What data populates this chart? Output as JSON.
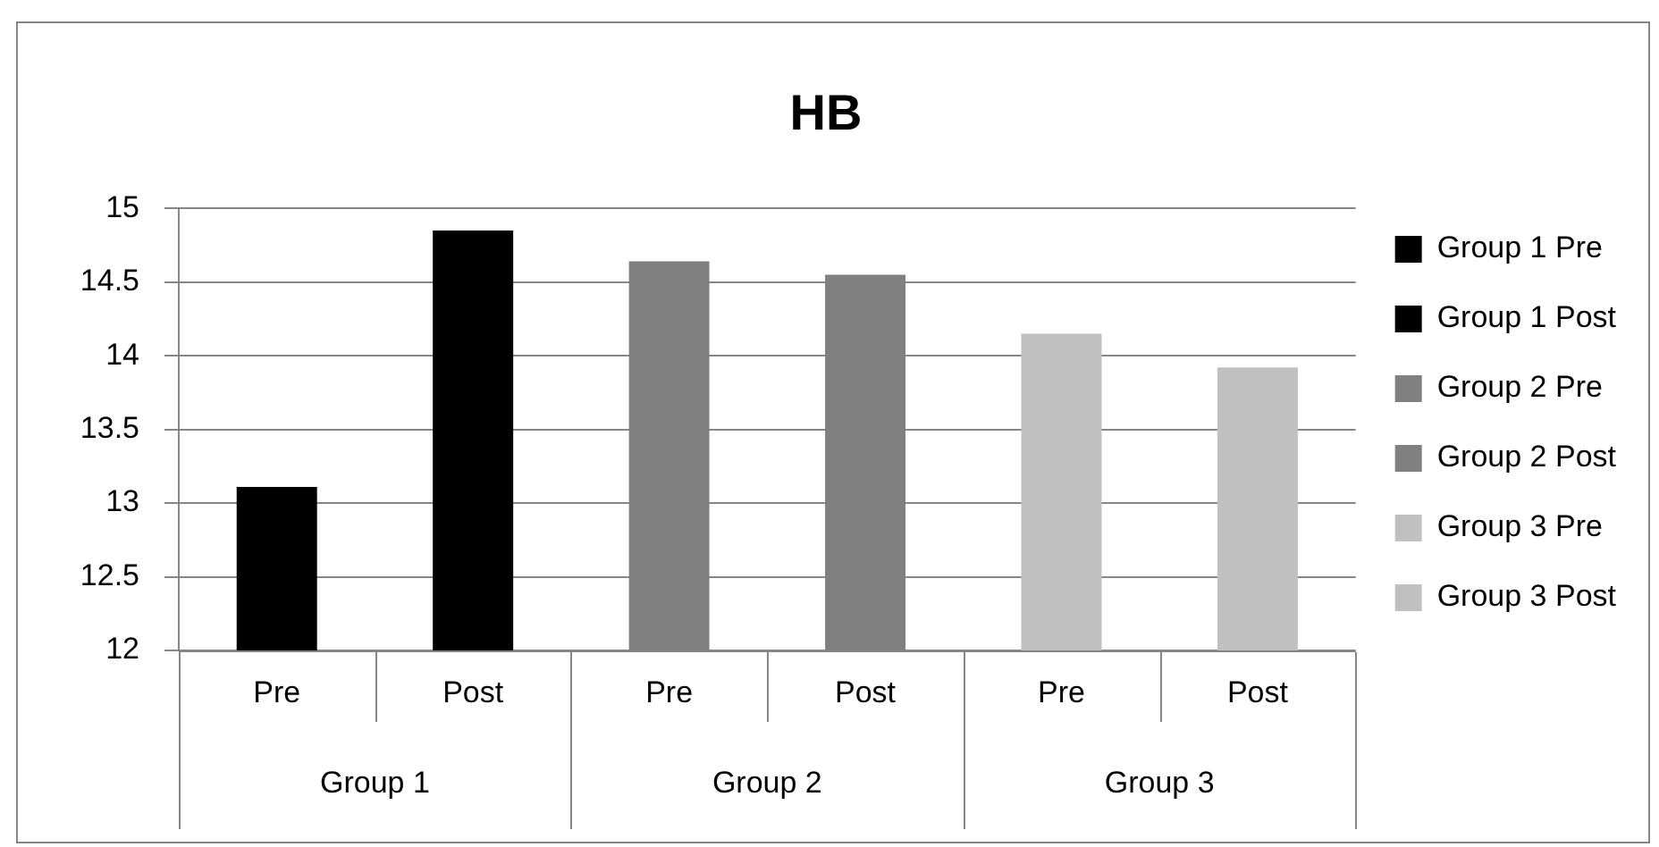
{
  "chart_data": {
    "type": "bar",
    "title": "HB",
    "categories": [
      "Pre",
      "Post",
      "Pre",
      "Post",
      "Pre",
      "Post"
    ],
    "series": [
      {
        "name": "Group 1 Pre",
        "color": "#000000",
        "values": [
          13.11,
          null,
          null,
          null,
          null,
          null
        ]
      },
      {
        "name": "Group 1 Post",
        "color": "#000000",
        "values": [
          null,
          14.85,
          null,
          null,
          null,
          null
        ]
      },
      {
        "name": "Group 2 Pre",
        "color": "#808080",
        "values": [
          null,
          null,
          14.64,
          null,
          null,
          null
        ]
      },
      {
        "name": "Group 2 Post",
        "color": "#808080",
        "values": [
          null,
          null,
          null,
          14.55,
          null,
          null
        ]
      },
      {
        "name": "Group 3 Pre",
        "color": "#c0c0c0",
        "values": [
          null,
          null,
          null,
          null,
          14.15,
          null
        ]
      },
      {
        "name": "Group 3 Post",
        "color": "#c0c0c0",
        "values": [
          null,
          null,
          null,
          null,
          null,
          13.92
        ]
      }
    ],
    "annotations": [
      "Group 1",
      "Group 2",
      "Group 3"
    ],
    "ylim": [
      12,
      15
    ],
    "yticks": [
      12,
      12.5,
      13,
      13.5,
      14,
      14.5,
      15
    ],
    "grid": "y",
    "legend": "right"
  }
}
